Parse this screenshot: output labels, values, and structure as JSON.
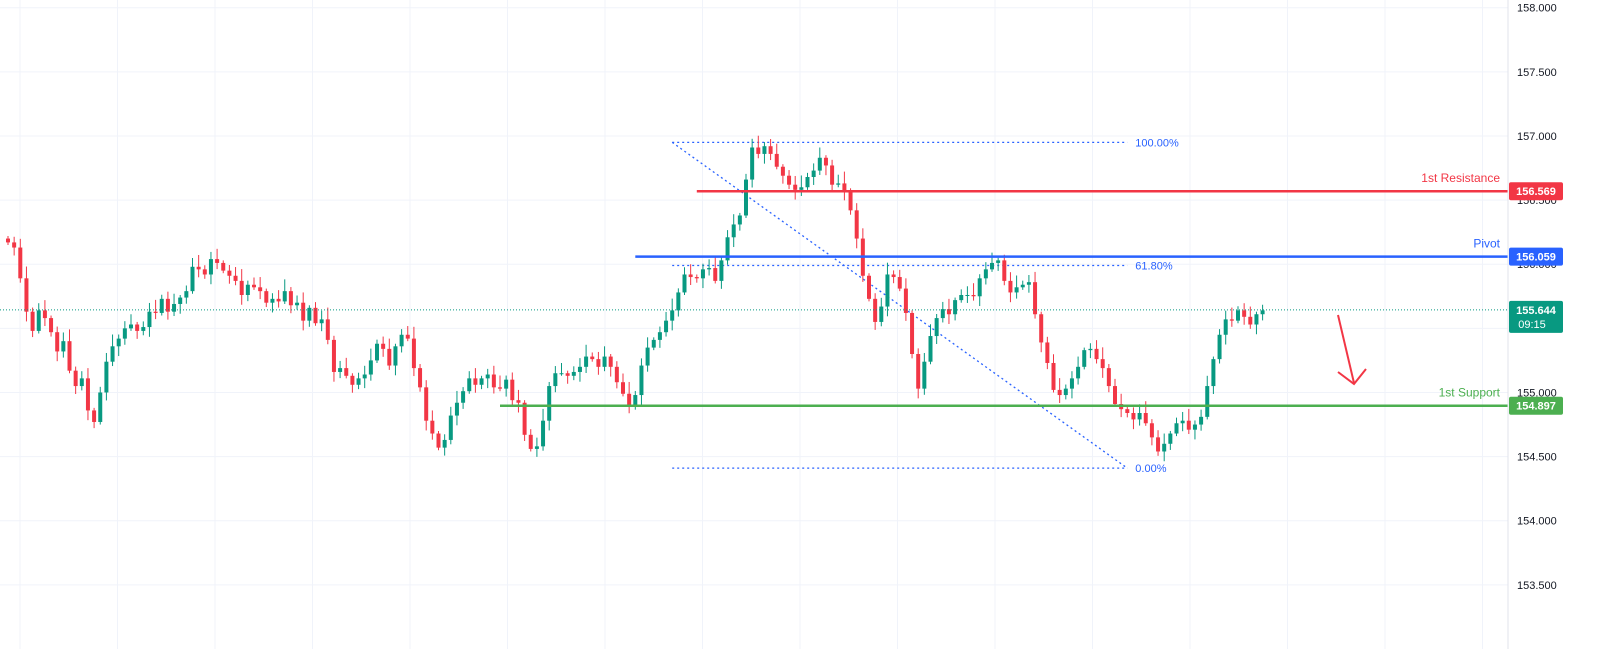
{
  "chart_data": {
    "type": "candlestick",
    "ylim": [
      153.0,
      158.06
    ],
    "y_ticks": [
      "158.000",
      "157.500",
      "157.000",
      "156.500",
      "156.000",
      "155.500",
      "155.000",
      "154.500",
      "154.000",
      "153.500"
    ],
    "y_tick_values": [
      158.0,
      157.5,
      157.0,
      156.5,
      156.0,
      155.5,
      155.0,
      154.5,
      154.0,
      153.5
    ],
    "grid": true,
    "current_price": {
      "label": "155.644",
      "timer": "09:15",
      "value": 155.644,
      "color": "#089981"
    },
    "levels": [
      {
        "name": "1st Resistance",
        "badge": "156.569",
        "value": 156.569,
        "color": "#f23645",
        "start_bar": 112
      },
      {
        "name": "Pivot",
        "badge": "156.059",
        "value": 156.059,
        "color": "#2962ff",
        "start_bar": 102
      },
      {
        "name": "1st Support",
        "badge": "154.897",
        "value": 154.897,
        "color": "#4caf50",
        "start_bar": 80
      }
    ],
    "fibonacci": {
      "color": "#2962ff",
      "levels": [
        {
          "label": "100.00%",
          "value": 156.95
        },
        {
          "label": "61.80%",
          "value": 155.99
        },
        {
          "label": "0.00%",
          "value": 154.41
        }
      ],
      "x_range_bars": [
        108,
        182
      ],
      "trend_from": {
        "bar": 108,
        "value": 156.95
      },
      "trend_to": {
        "bar": 182,
        "value": 154.41
      }
    },
    "projection_arrow": {
      "direction": "down",
      "color": "#f23645"
    },
    "candle_colors": {
      "up": "#089981",
      "down": "#f23645"
    },
    "closes": [
      156.17,
      156.13,
      155.89,
      155.63,
      155.48,
      155.64,
      155.58,
      155.47,
      155.32,
      155.4,
      155.17,
      155.05,
      155.11,
      154.86,
      154.77,
      155.0,
      155.24,
      155.36,
      155.42,
      155.5,
      155.53,
      155.48,
      155.51,
      155.63,
      155.62,
      155.73,
      155.63,
      155.69,
      155.74,
      155.79,
      155.98,
      155.96,
      155.92,
      156.04,
      156.01,
      155.95,
      155.91,
      155.87,
      155.76,
      155.84,
      155.82,
      155.79,
      155.7,
      155.73,
      155.71,
      155.79,
      155.68,
      155.7,
      155.56,
      155.66,
      155.54,
      155.57,
      155.41,
      155.16,
      155.19,
      155.13,
      155.06,
      155.11,
      155.14,
      155.25,
      155.38,
      155.34,
      155.21,
      155.36,
      155.45,
      155.42,
      155.19,
      155.04,
      154.78,
      154.68,
      154.57,
      154.63,
      154.82,
      154.92,
      155.01,
      155.11,
      155.06,
      155.11,
      155.14,
      155.04,
      155.03,
      155.1,
      154.94,
      154.92,
      154.67,
      154.56,
      154.58,
      154.78,
      155.05,
      155.15,
      155.15,
      155.13,
      155.16,
      155.2,
      155.28,
      155.26,
      155.2,
      155.28,
      155.2,
      155.08,
      154.99,
      154.9,
      154.98,
      155.21,
      155.35,
      155.41,
      155.47,
      155.56,
      155.64,
      155.78,
      155.92,
      155.9,
      155.89,
      155.96,
      155.97,
      155.87,
      156.03,
      156.21,
      156.31,
      156.38,
      156.66,
      156.91,
      156.86,
      156.92,
      156.86,
      156.76,
      156.69,
      156.62,
      156.58,
      156.6,
      156.68,
      156.73,
      156.83,
      156.77,
      156.62,
      156.63,
      156.56,
      156.42,
      156.2,
      155.91,
      155.73,
      155.55,
      155.67,
      155.92,
      155.9,
      155.81,
      155.62,
      155.3,
      155.03,
      155.24,
      155.44,
      155.58,
      155.65,
      155.61,
      155.72,
      155.76,
      155.76,
      155.75,
      155.89,
      155.96,
      156.01,
      156.03,
      155.87,
      155.78,
      155.82,
      155.84,
      155.86,
      155.61,
      155.39,
      155.23,
      155.02,
      154.98,
      155.03,
      155.11,
      155.2,
      155.33,
      155.34,
      155.26,
      155.19,
      155.05,
      154.91,
      154.87,
      154.84,
      154.79,
      154.84,
      154.76,
      154.65,
      154.54,
      154.6,
      154.68,
      154.76,
      154.78,
      154.71,
      154.75,
      154.81,
      155.05,
      155.26,
      155.45,
      155.57,
      155.56,
      155.64,
      155.59,
      155.53,
      155.61,
      155.64
    ]
  }
}
